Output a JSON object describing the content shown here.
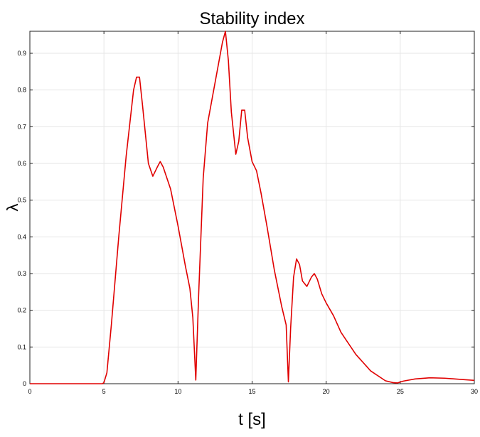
{
  "chart_data": {
    "type": "line",
    "title": "Stability index",
    "xlabel": "t [s]",
    "ylabel": "λ",
    "xlim": [
      0,
      30
    ],
    "ylim": [
      0,
      0.96
    ],
    "xticks": [
      0,
      5,
      10,
      15,
      20,
      25,
      30
    ],
    "yticks": [
      0,
      0.1,
      0.2,
      0.3,
      0.4,
      0.5,
      0.6,
      0.7,
      0.8,
      0.9
    ],
    "grid": true,
    "series": [
      {
        "color": "#e00000",
        "x": [
          0,
          4.9,
          5.0,
          5.2,
          5.5,
          6.0,
          6.5,
          7.0,
          7.2,
          7.4,
          7.6,
          8.0,
          8.3,
          8.6,
          8.8,
          9.0,
          9.5,
          10.0,
          10.5,
          10.8,
          11.0,
          11.2,
          11.4,
          11.7,
          12.0,
          12.5,
          13.0,
          13.2,
          13.4,
          13.6,
          13.9,
          14.1,
          14.3,
          14.5,
          14.7,
          15.0,
          15.3,
          15.6,
          16.0,
          16.5,
          17.0,
          17.3,
          17.45,
          17.6,
          17.8,
          18.0,
          18.2,
          18.4,
          18.7,
          19.0,
          19.2,
          19.4,
          19.7,
          20.0,
          20.5,
          21.0,
          22.0,
          23.0,
          24.0,
          24.5,
          24.8,
          25.2,
          26.0,
          27.0,
          28.0,
          29.0,
          30.0
        ],
        "y": [
          0,
          0,
          0.003,
          0.03,
          0.16,
          0.4,
          0.62,
          0.8,
          0.835,
          0.835,
          0.76,
          0.6,
          0.565,
          0.59,
          0.605,
          0.59,
          0.53,
          0.43,
          0.32,
          0.26,
          0.18,
          0.01,
          0.25,
          0.56,
          0.71,
          0.82,
          0.93,
          0.96,
          0.88,
          0.74,
          0.625,
          0.66,
          0.745,
          0.745,
          0.67,
          0.605,
          0.58,
          0.52,
          0.43,
          0.31,
          0.21,
          0.16,
          0.005,
          0.15,
          0.29,
          0.34,
          0.325,
          0.28,
          0.265,
          0.29,
          0.3,
          0.285,
          0.245,
          0.22,
          0.185,
          0.14,
          0.08,
          0.035,
          0.008,
          0.003,
          0.002,
          0.007,
          0.013,
          0.016,
          0.015,
          0.012,
          0.009
        ]
      }
    ]
  }
}
